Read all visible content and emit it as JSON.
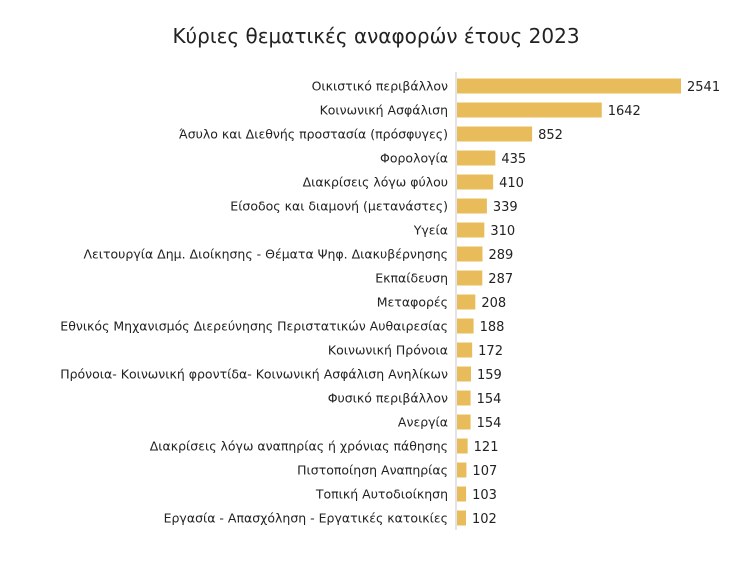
{
  "chart_data": {
    "type": "bar",
    "orientation": "horizontal",
    "title": "Κύριες θεματικές αναφορών έτους 2023",
    "bar_color": "#E8BC5A",
    "axis_color": "#C8C8C8",
    "categories": [
      "Οικιστικό περιβάλλον",
      "Κοινωνική Ασφάλιση",
      "Άσυλο και Διεθνής προστασία (πρόσφυγες)",
      "Φορολογία",
      "Διακρίσεις λόγω φύλου",
      "Είσοδος και διαμονή (μετανάστες)",
      "Υγεία",
      "Λειτουργία Δημ. Διοίκησης - Θέματα Ψηφ. Διακυβέρνησης",
      "Εκπαίδευση",
      "Μεταφορές",
      "Εθνικός Μηχανισμός Διερεύνησης Περιστατικών Αυθαιρεσίας",
      "Κοινωνική Πρόνοια",
      "Πρόνοια- Κοινωνική φροντίδα- Κοινωνική Ασφάλιση Ανηλίκων",
      "Φυσικό περιβάλλον",
      "Ανεργία",
      "Διακρίσεις λόγω αναπηρίας ή χρόνιας πάθησης",
      "Πιστοποίηση Αναπηρίας",
      "Τοπική Αυτοδιοίκηση",
      "Εργασία - Απασχόληση - Εργατικές κατοικίες"
    ],
    "values": [
      2541,
      1642,
      852,
      435,
      410,
      339,
      310,
      289,
      287,
      208,
      188,
      172,
      159,
      154,
      154,
      121,
      107,
      103,
      102
    ],
    "xlim": [
      0,
      2541
    ],
    "grid": false,
    "legend": "none"
  }
}
